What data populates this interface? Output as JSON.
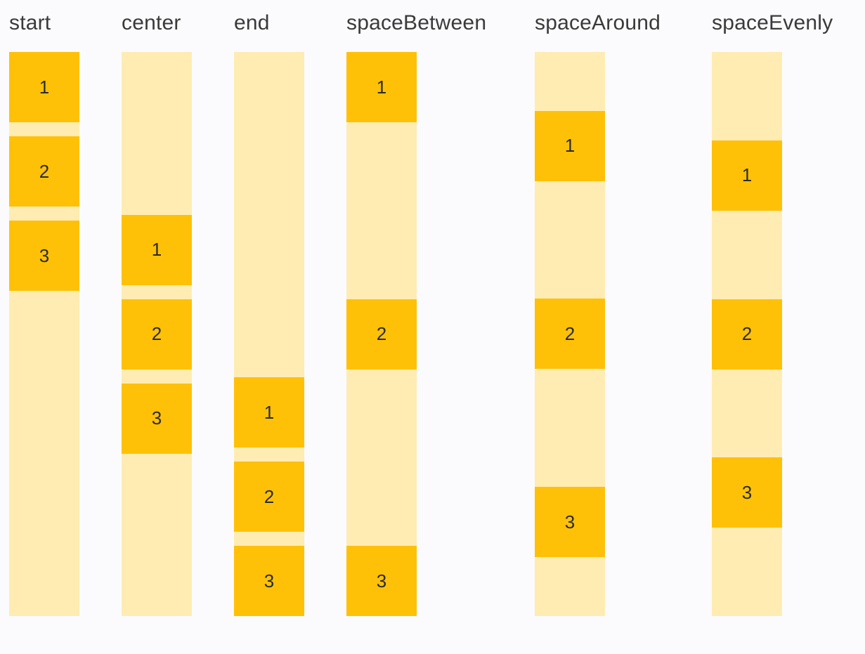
{
  "colors": {
    "box": "#FFC107",
    "track": "#FFECB3",
    "background": "#FBFBFE",
    "label_text": "#3A3A3A",
    "box_text": "#2B2B2B"
  },
  "columns": [
    {
      "label": "start",
      "items": [
        "1",
        "2",
        "3"
      ]
    },
    {
      "label": "center",
      "items": [
        "1",
        "2",
        "3"
      ]
    },
    {
      "label": "end",
      "items": [
        "1",
        "2",
        "3"
      ]
    },
    {
      "label": "spaceBetween",
      "items": [
        "1",
        "2",
        "3"
      ]
    },
    {
      "label": "spaceAround",
      "items": [
        "1",
        "2",
        "3"
      ]
    },
    {
      "label": "spaceEvenly",
      "items": [
        "1",
        "2",
        "3"
      ]
    }
  ]
}
